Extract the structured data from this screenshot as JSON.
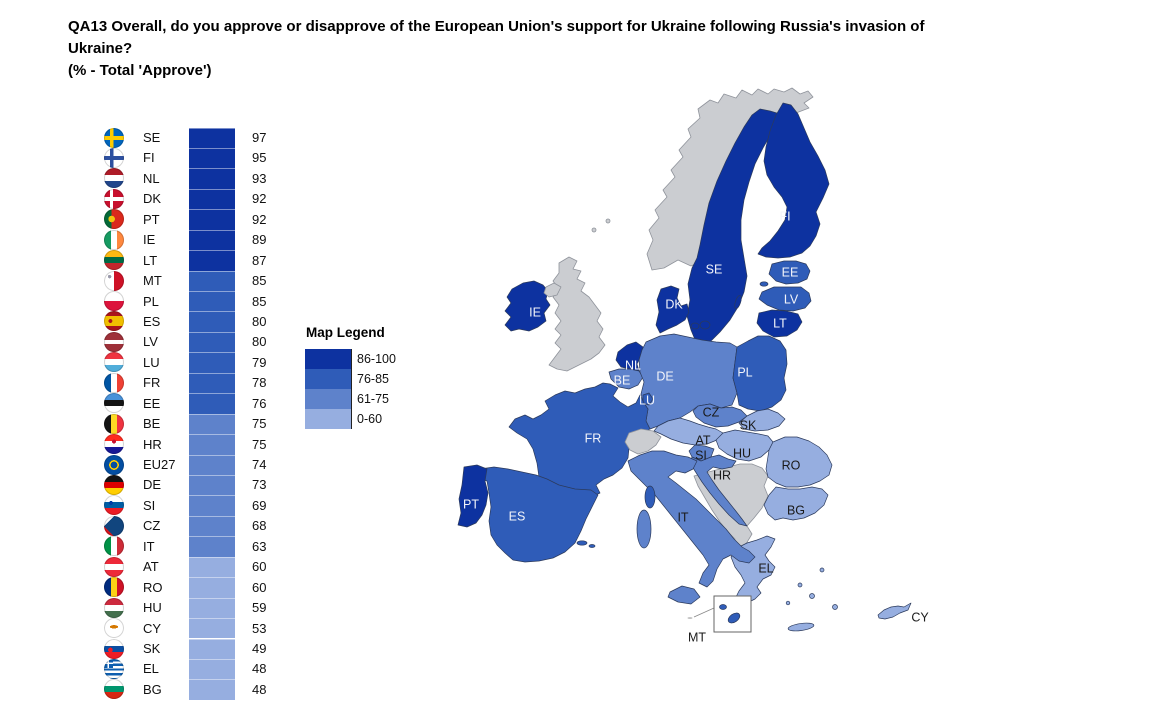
{
  "title": {
    "line1": "QA13 Overall, do you approve or disapprove of the European Union's support for Ukraine following Russia's invasion of",
    "line2": "Ukraine?",
    "line3": "(% - Total 'Approve')"
  },
  "legend": {
    "title": "Map Legend",
    "items": [
      {
        "label": "86-100",
        "color": "#0d32a0"
      },
      {
        "label": "76-85",
        "color": "#2f5cb8"
      },
      {
        "label": "61-75",
        "color": "#5e82cb"
      },
      {
        "label": "0-60",
        "color": "#96aee0"
      }
    ]
  },
  "ranking": [
    {
      "code": "SE",
      "value": 97,
      "flag": "sweden-flag-icon"
    },
    {
      "code": "FI",
      "value": 95,
      "flag": "finland-flag-icon"
    },
    {
      "code": "NL",
      "value": 93,
      "flag": "netherlands-flag-icon"
    },
    {
      "code": "DK",
      "value": 92,
      "flag": "denmark-flag-icon"
    },
    {
      "code": "PT",
      "value": 92,
      "flag": "portugal-flag-icon"
    },
    {
      "code": "IE",
      "value": 89,
      "flag": "ireland-flag-icon"
    },
    {
      "code": "LT",
      "value": 87,
      "flag": "lithuania-flag-icon"
    },
    {
      "code": "MT",
      "value": 85,
      "flag": "malta-flag-icon"
    },
    {
      "code": "PL",
      "value": 85,
      "flag": "poland-flag-icon"
    },
    {
      "code": "ES",
      "value": 80,
      "flag": "spain-flag-icon"
    },
    {
      "code": "LV",
      "value": 80,
      "flag": "latvia-flag-icon"
    },
    {
      "code": "LU",
      "value": 79,
      "flag": "luxembourg-flag-icon"
    },
    {
      "code": "FR",
      "value": 78,
      "flag": "france-flag-icon"
    },
    {
      "code": "EE",
      "value": 76,
      "flag": "estonia-flag-icon"
    },
    {
      "code": "BE",
      "value": 75,
      "flag": "belgium-flag-icon"
    },
    {
      "code": "HR",
      "value": 75,
      "flag": "croatia-flag-icon"
    },
    {
      "code": "EU27",
      "value": 74,
      "flag": "eu-flag-icon"
    },
    {
      "code": "DE",
      "value": 73,
      "flag": "germany-flag-icon"
    },
    {
      "code": "SI",
      "value": 69,
      "flag": "slovenia-flag-icon"
    },
    {
      "code": "CZ",
      "value": 68,
      "flag": "czechia-flag-icon"
    },
    {
      "code": "IT",
      "value": 63,
      "flag": "italy-flag-icon"
    },
    {
      "code": "AT",
      "value": 60,
      "flag": "austria-flag-icon"
    },
    {
      "code": "RO",
      "value": 60,
      "flag": "romania-flag-icon"
    },
    {
      "code": "HU",
      "value": 59,
      "flag": "hungary-flag-icon"
    },
    {
      "code": "CY",
      "value": 53,
      "flag": "cyprus-flag-icon"
    },
    {
      "code": "SK",
      "value": 49,
      "flag": "slovakia-flag-icon"
    },
    {
      "code": "EL",
      "value": 48,
      "flag": "greece-flag-icon"
    },
    {
      "code": "BG",
      "value": 48,
      "flag": "bulgaria-flag-icon"
    }
  ],
  "map": {
    "non_eu_color": "#cbcdd1",
    "labels": [
      "FI",
      "SE",
      "EE",
      "LV",
      "LT",
      "DK",
      "IE",
      "NL",
      "BE",
      "DE",
      "LU",
      "PL",
      "CZ",
      "SK",
      "AT",
      "HU",
      "SI",
      "HR",
      "RO",
      "BG",
      "IT",
      "FR",
      "PT",
      "ES",
      "EL",
      "MT",
      "CY"
    ]
  },
  "chart_data": {
    "type": "bar",
    "title": "QA13 Overall, do you approve or disapprove of the European Union's support for Ukraine following Russia's invasion of Ukraine?",
    "subtitle": "(% - Total 'Approve')",
    "categories": [
      "SE",
      "FI",
      "NL",
      "DK",
      "PT",
      "IE",
      "LT",
      "MT",
      "PL",
      "ES",
      "LV",
      "LU",
      "FR",
      "EE",
      "BE",
      "HR",
      "EU27",
      "DE",
      "SI",
      "CZ",
      "IT",
      "AT",
      "RO",
      "HU",
      "CY",
      "SK",
      "EL",
      "BG"
    ],
    "values": [
      97,
      95,
      93,
      92,
      92,
      89,
      87,
      85,
      85,
      80,
      80,
      79,
      78,
      76,
      75,
      75,
      74,
      73,
      69,
      68,
      63,
      60,
      60,
      59,
      53,
      49,
      48,
      48
    ],
    "bins": [
      {
        "range": "86-100",
        "color": "#0d32a0"
      },
      {
        "range": "76-85",
        "color": "#2f5cb8"
      },
      {
        "range": "61-75",
        "color": "#5e82cb"
      },
      {
        "range": "0-60",
        "color": "#96aee0"
      }
    ],
    "companion": "choropleth map of EU member states, non-EU countries shown gray",
    "legend_position": "left-middle",
    "grid": false
  }
}
